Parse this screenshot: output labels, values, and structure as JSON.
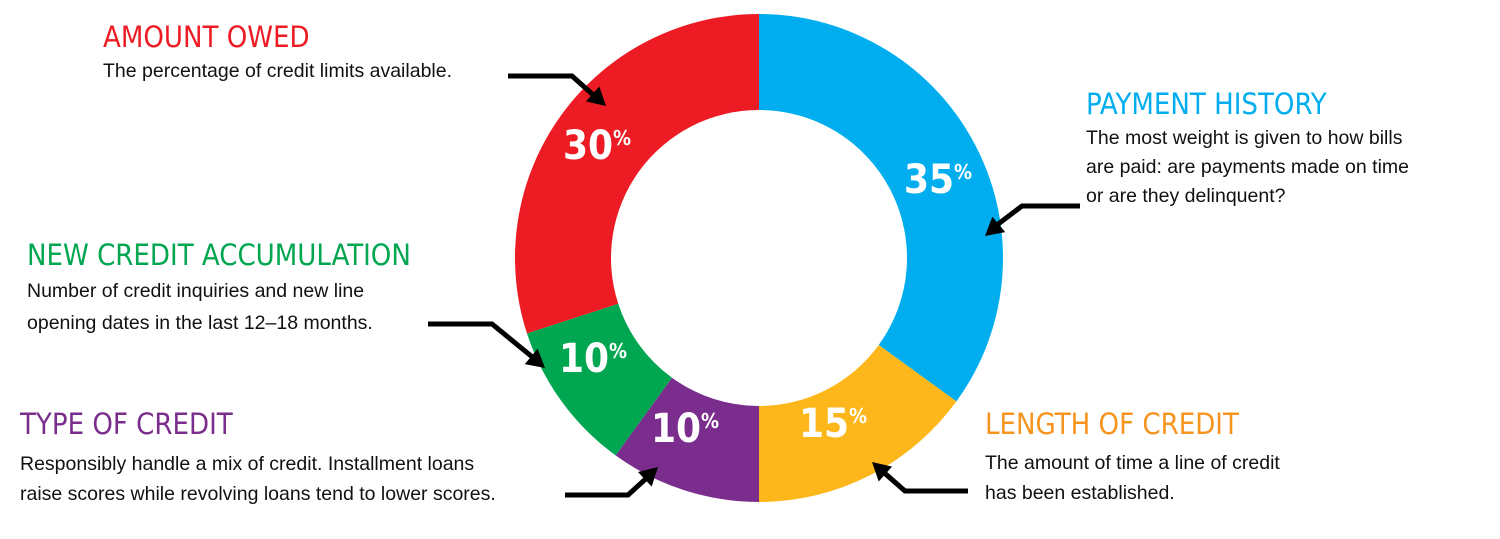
{
  "chart_data": {
    "type": "pie",
    "variant": "donut",
    "title": "",
    "unit": "%",
    "slices": [
      {
        "key": "payment",
        "label": "PAYMENT HISTORY",
        "value": 35,
        "value_label": "35",
        "color": "#00AEEF",
        "description": [
          "The most weight is given to how bills",
          "are paid: are payments made on time",
          "or are they delinquent?"
        ]
      },
      {
        "key": "length",
        "label": "LENGTH OF CREDIT",
        "value": 15,
        "value_label": "15",
        "color": "#FDB71A",
        "description": [
          "The amount of time a line of credit",
          "has been established."
        ]
      },
      {
        "key": "type",
        "label": "TYPE OF CREDIT",
        "value": 10,
        "value_label": "10",
        "color": "#7B2D8E",
        "description": [
          "Responsibly handle a mix of credit. Installment loans",
          "raise scores while revolving loans tend to lower scores."
        ]
      },
      {
        "key": "newcredit",
        "label": "NEW CREDIT ACCUMULATION",
        "value": 10,
        "value_label": "10",
        "color": "#00A650",
        "description": [
          "Number of credit inquiries and new line",
          "opening dates in the last 12–18 months."
        ]
      },
      {
        "key": "owed",
        "label": "AMOUNT OWED",
        "value": 30,
        "value_label": "30",
        "color": "#ED1C24",
        "description": [
          "The percentage of credit limits available."
        ]
      }
    ]
  }
}
